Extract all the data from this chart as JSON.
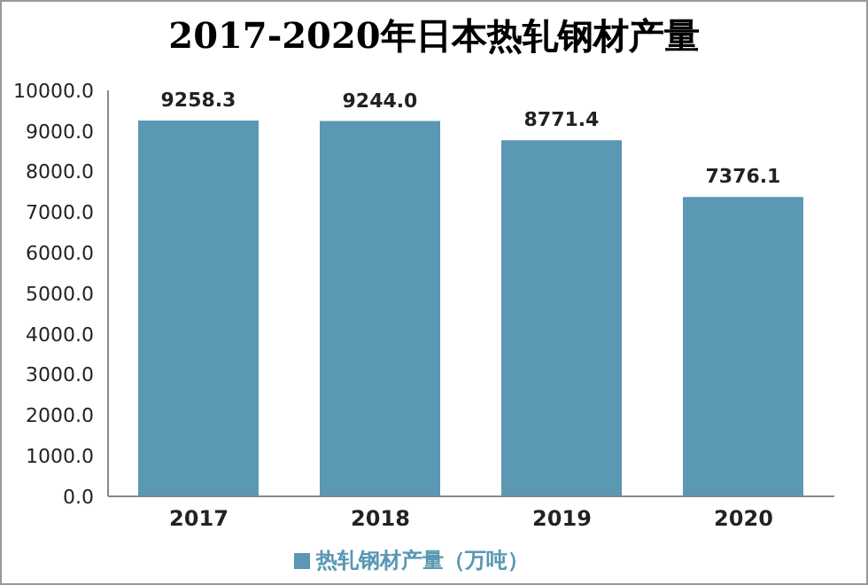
{
  "chart_data": {
    "type": "bar",
    "title": "2017-2020年日本热轧钢材产量",
    "categories": [
      "2017",
      "2018",
      "2019",
      "2020"
    ],
    "series": [
      {
        "name": "热轧钢材产量（万吨）",
        "color": "#5a98b3",
        "values": [
          9258.3,
          9244.0,
          8771.4,
          7376.1
        ]
      }
    ],
    "value_labels": [
      "9258.3",
      "9244.0",
      "8771.4",
      "7376.1"
    ],
    "ylim": [
      0,
      10000
    ],
    "yticks": [
      {
        "value": 0,
        "label": "0.0"
      },
      {
        "value": 1000,
        "label": "1000.0"
      },
      {
        "value": 2000,
        "label": "2000.0"
      },
      {
        "value": 3000,
        "label": "3000.0"
      },
      {
        "value": 4000,
        "label": "4000.0"
      },
      {
        "value": 5000,
        "label": "5000.0"
      },
      {
        "value": 6000,
        "label": "6000.0"
      },
      {
        "value": 7000,
        "label": "7000.0"
      },
      {
        "value": 8000,
        "label": "8000.0"
      },
      {
        "value": 9000,
        "label": "9000.0"
      },
      {
        "value": 10000,
        "label": "10000.0"
      }
    ],
    "grid": false,
    "legend": "bottom"
  }
}
